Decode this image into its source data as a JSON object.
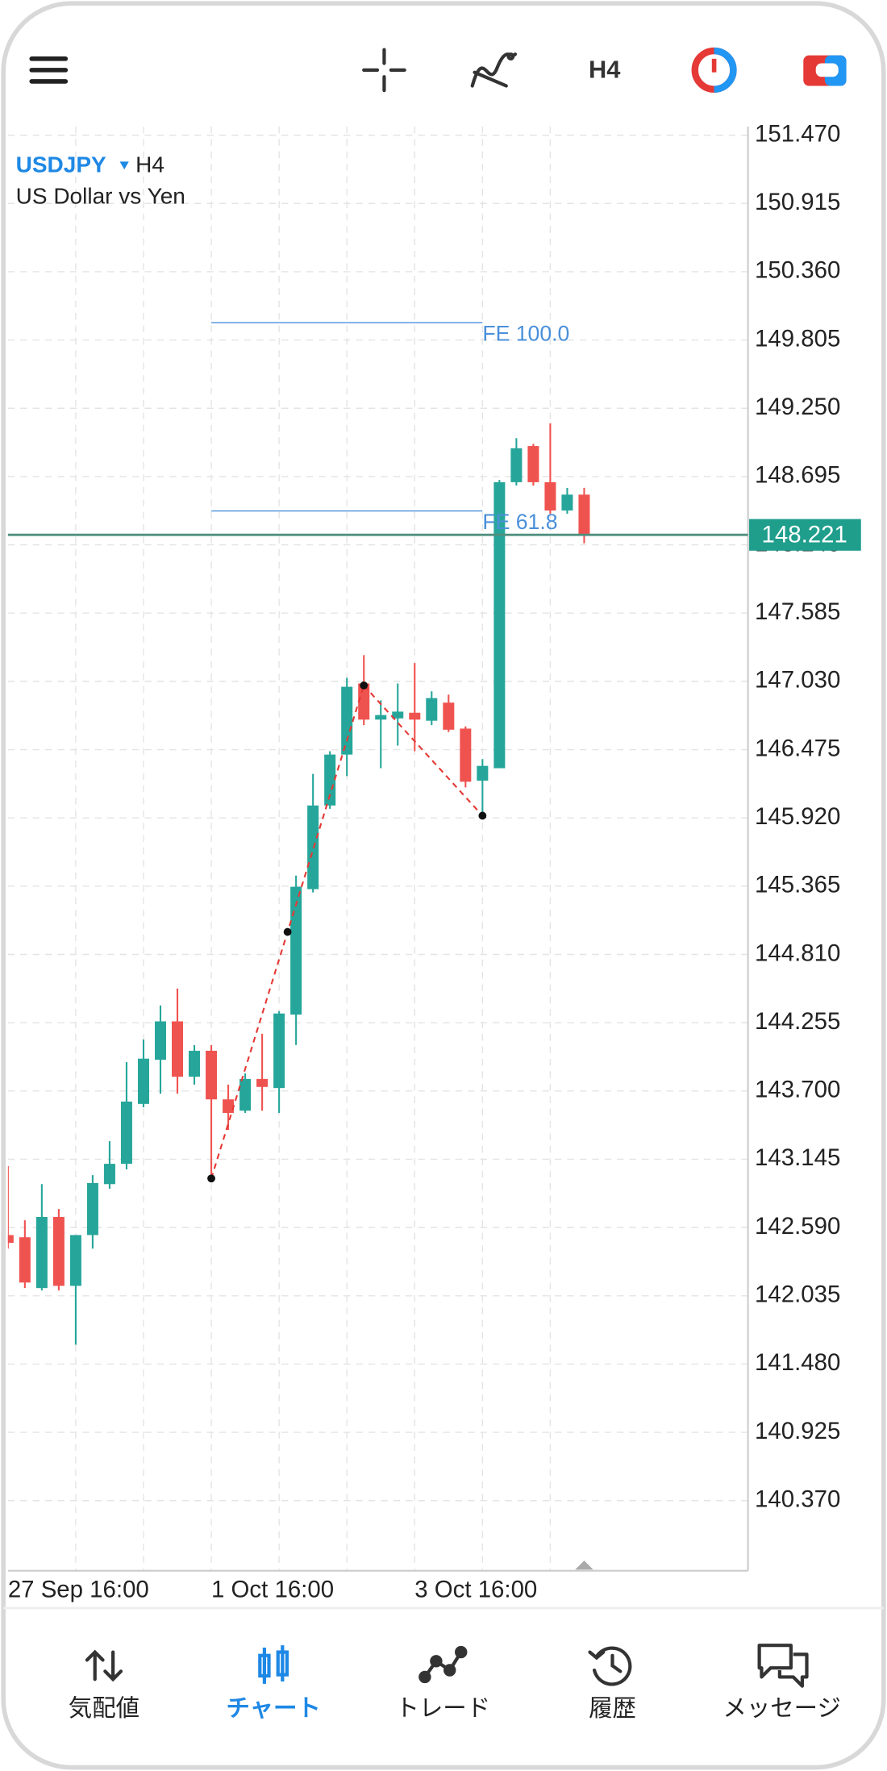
{
  "toolbar": {
    "timeframe": "H4"
  },
  "chart_data": {
    "type": "candlestick",
    "symbol": "USDJPY",
    "timeframe": "H4",
    "description": "US Dollar vs Yen",
    "categories": [
      "27 Sep 16:00",
      null,
      null,
      null,
      null,
      null,
      null,
      null,
      null,
      null,
      null,
      null,
      "1 Oct 16:00",
      null,
      null,
      null,
      null,
      null,
      null,
      null,
      null,
      null,
      null,
      null,
      "3 Oct 16:00",
      null,
      null,
      null,
      null,
      null,
      null,
      null,
      null,
      null,
      null
    ],
    "open": [
      142.529,
      142.511,
      142.098,
      142.676,
      142.116,
      142.529,
      142.943,
      143.108,
      143.595,
      143.954,
      144.266,
      143.816,
      144.027,
      143.632,
      143.54,
      143.798,
      143.724,
      144.321,
      145.341,
      146.021,
      146.435,
      147.013,
      146.719,
      146.729,
      146.775,
      146.71,
      146.857,
      146.646,
      146.223,
      146.324,
      148.649,
      148.943,
      148.649,
      148.419,
      148.548
    ],
    "high": [
      143.09,
      142.649,
      142.943,
      142.741,
      142.529,
      143.016,
      143.292,
      143.935,
      144.119,
      144.395,
      144.533,
      144.073,
      144.073,
      143.752,
      143.843,
      144.165,
      144.349,
      145.451,
      146.278,
      146.462,
      147.059,
      147.243,
      146.876,
      147.013,
      147.179,
      146.949,
      146.922,
      146.664,
      146.398,
      148.667,
      149.007,
      148.961,
      149.127,
      148.603,
      148.603
    ],
    "low": [
      142.419,
      142.098,
      142.079,
      142.079,
      141.638,
      142.419,
      142.906,
      143.062,
      143.568,
      143.678,
      143.678,
      143.752,
      142.989,
      143.384,
      143.522,
      143.54,
      143.522,
      144.073,
      145.314,
      145.994,
      146.26,
      146.674,
      146.324,
      146.508,
      146.462,
      146.674,
      146.618,
      146.168,
      145.938,
      146.324,
      148.622,
      148.622,
      148.392,
      148.392,
      148.153
    ],
    "close": [
      142.465,
      142.143,
      142.676,
      142.116,
      142.529,
      142.952,
      143.108,
      143.614,
      143.963,
      144.266,
      143.816,
      144.027,
      143.632,
      143.522,
      143.798,
      143.733,
      144.33,
      145.36,
      146.021,
      146.435,
      146.986,
      146.719,
      146.756,
      146.784,
      146.719,
      146.894,
      146.637,
      146.214,
      146.343,
      148.649,
      148.925,
      148.649,
      148.419,
      148.548,
      148.221
    ],
    "up_color": "#26a69a",
    "down_color": "#ef5350",
    "ylim": [
      139.8,
      151.54
    ],
    "yticks": [
      {
        "value": 151.47,
        "label": "151.470"
      },
      150.915,
      {
        "value": 150.36,
        "label": "150.360"
      },
      149.805,
      {
        "value": 149.25,
        "label": "149.250"
      },
      148.695,
      {
        "value": 148.14,
        "label": "148.140"
      },
      147.585,
      {
        "value": 147.03,
        "label": "147.030"
      },
      146.475,
      {
        "value": 145.92,
        "label": "145.920"
      },
      145.365,
      {
        "value": 144.81,
        "label": "144.810"
      },
      144.255,
      {
        "value": 143.7,
        "label": "143.700"
      },
      143.145,
      {
        "value": 142.59,
        "label": "142.590"
      },
      142.035,
      {
        "value": 141.48,
        "label": "141.480"
      },
      140.925,
      {
        "value": 140.37,
        "label": "140.370"
      }
    ],
    "grid": true,
    "current_price": 148.221,
    "current_price_color": "#1f9e8c",
    "fibo_expansion": {
      "color": "#4a90d9",
      "line_color": "#e53935",
      "points": [
        {
          "bar": 12,
          "price": 142.989
        },
        {
          "bar": 21,
          "price": 146.997
        },
        {
          "bar": 28,
          "price": 145.938
        }
      ],
      "levels": [
        {
          "label": "FE 100.0",
          "value": 149.946
        },
        {
          "label": "FE 61.8",
          "value": 148.415
        }
      ]
    }
  },
  "nav": [
    {
      "label": "気配値",
      "active": false
    },
    {
      "label": "チャート",
      "active": true
    },
    {
      "label": "トレード",
      "active": false
    },
    {
      "label": "履歴",
      "active": false
    },
    {
      "label": "メッセージ",
      "active": false
    }
  ]
}
